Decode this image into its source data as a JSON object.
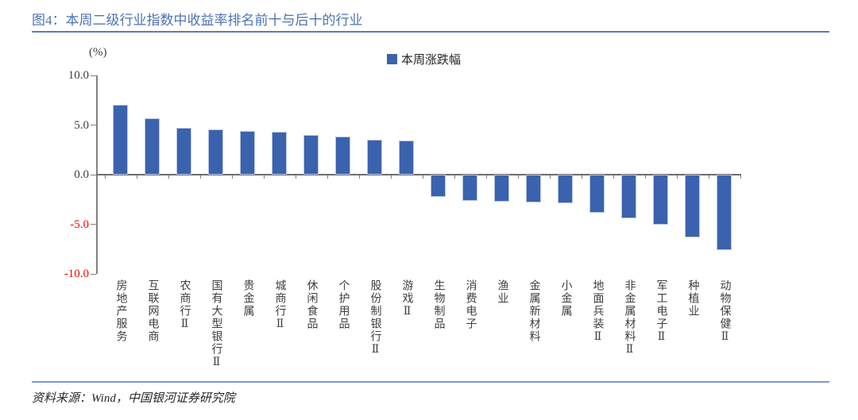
{
  "header": {
    "title": "图4：本周二级行业指数中收益率排名前十与后十的行业"
  },
  "footer": {
    "source": "资料来源：Wind，中国银河证券研究院"
  },
  "colors": {
    "bar_blue": "#3A62AE",
    "bar_edge": "#b7c7e6",
    "title_blue": "#4E73B5",
    "separator_blue": "#7E9BD0",
    "negative_tick_red": "#FF0000",
    "axis_gray": "#808080"
  },
  "chart_data": {
    "type": "bar",
    "title": "图4：本周二级行业指数中收益率排名前十与后十的行业",
    "unit_label": "(%)",
    "legend": [
      {
        "name": "本周涨跌幅",
        "color": "#3A62AE"
      }
    ],
    "legend_position": "top-center",
    "categories": [
      "房地产服务",
      "互联网电商",
      "农商行Ⅱ",
      "国有大型银行Ⅱ",
      "贵金属",
      "城商行Ⅱ",
      "休闲食品",
      "个护用品",
      "股份制银行Ⅱ",
      "游戏Ⅱ",
      "生物制品",
      "消费电子",
      "渔业",
      "金属新材料",
      "小金属",
      "地面兵装Ⅱ",
      "非金属材料Ⅱ",
      "军工电子Ⅱ",
      "种植业",
      "动物保健Ⅱ"
    ],
    "values": [
      7.0,
      5.7,
      4.7,
      4.6,
      4.4,
      4.3,
      4.0,
      3.8,
      3.5,
      3.4,
      -2.2,
      -2.6,
      -2.7,
      -2.8,
      -2.9,
      -3.8,
      -4.4,
      -5.0,
      -6.3,
      -7.6
    ],
    "xlabel": "",
    "ylabel": "(%)",
    "ylim": [
      -10.0,
      10.0
    ],
    "yticks": [
      {
        "label": "10.0",
        "value": 10
      },
      {
        "label": "5.0",
        "value": 5
      },
      {
        "label": "0.0",
        "value": 0
      },
      {
        "label": "-5.0",
        "value": -5
      },
      {
        "label": "-10.0",
        "value": -10
      }
    ],
    "grid": false
  }
}
